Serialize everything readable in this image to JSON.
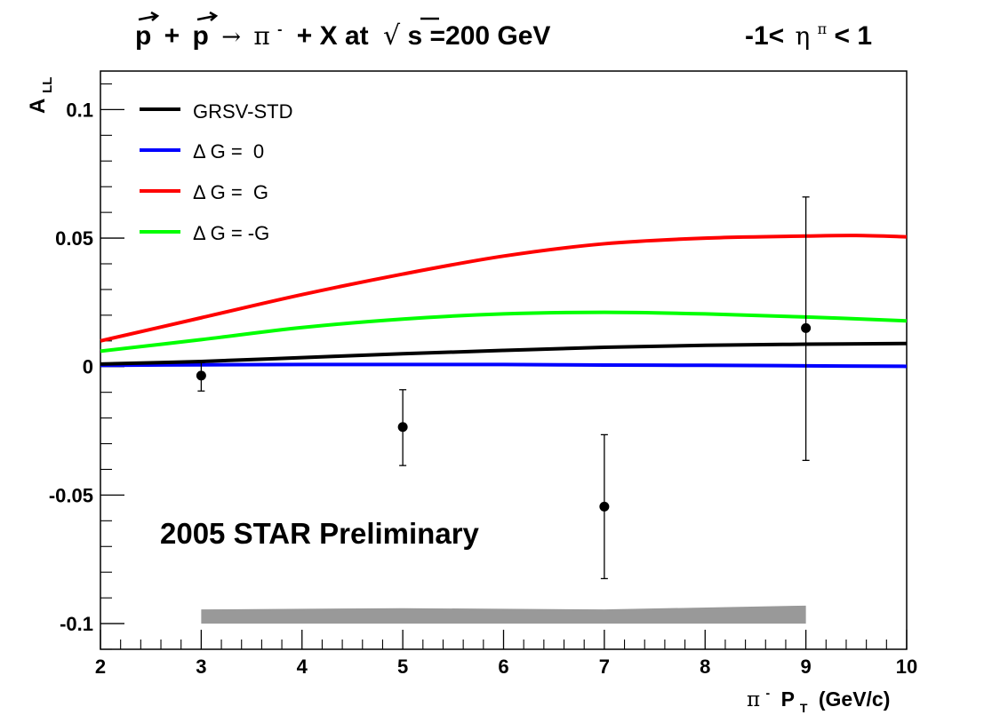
{
  "chart_data": {
    "type": "line",
    "title": {
      "left_a": "p",
      "left_plus": "+",
      "left_b": "p",
      "arrow": "→",
      "pi": "π",
      "pi_charge": "-",
      "rest_a": "+ X at",
      "sqrt_sign": "√",
      "sqrt_s": "s",
      "rest_b": "=200 GeV",
      "cut_prefix": "-1<",
      "cut_eta": "η",
      "cut_eta_sup": "π",
      "cut_suffix": "< 1"
    },
    "xlabel": {
      "pi": "π",
      "pi_charge": "-",
      "p": "P",
      "p_sub": "T",
      "unit": "(GeV/c)"
    },
    "ylabel": {
      "a": "A",
      "sub": "LL"
    },
    "xlim": [
      2,
      10
    ],
    "ylim": [
      -0.11,
      0.115
    ],
    "x_ticks": [
      2,
      3,
      4,
      5,
      6,
      7,
      8,
      9,
      10
    ],
    "x_tick_labels": [
      "2",
      "3",
      "4",
      "5",
      "6",
      "7",
      "8",
      "9",
      "10"
    ],
    "y_ticks": [
      -0.1,
      -0.05,
      0,
      0.05,
      0.1
    ],
    "y_tick_labels": [
      "-0.1",
      "-0.05",
      "0",
      "0.05",
      "0.1"
    ],
    "annotation": "2005 STAR Preliminary",
    "legend_position": "top-left",
    "series": [
      {
        "name": "GRSV-STD",
        "color": "#000000",
        "x": [
          2,
          3,
          4,
          5,
          6,
          7,
          8,
          9,
          10
        ],
        "y": [
          0.001,
          0.002,
          0.0035,
          0.005,
          0.0063,
          0.0075,
          0.0083,
          0.0087,
          0.009
        ]
      },
      {
        "name": "Δ G =  0",
        "color": "#0000ff",
        "x": [
          2,
          3,
          4,
          5,
          6,
          7,
          8,
          9,
          10
        ],
        "y": [
          0.0005,
          0.0007,
          0.0008,
          0.0008,
          0.0008,
          0.0006,
          0.0005,
          0.0003,
          0.0001
        ]
      },
      {
        "name": "Δ G =  G",
        "color": "#ff0000",
        "x": [
          2,
          3,
          4,
          5,
          6,
          7,
          8,
          9,
          9.5,
          10
        ],
        "y": [
          0.01,
          0.019,
          0.028,
          0.036,
          0.043,
          0.0478,
          0.05,
          0.0508,
          0.051,
          0.0505
        ]
      },
      {
        "name": "Δ G = -G",
        "color": "#00ff00",
        "x": [
          2,
          3,
          4,
          5,
          6,
          7,
          8,
          9,
          10
        ],
        "y": [
          0.006,
          0.0105,
          0.0152,
          0.0185,
          0.0205,
          0.0211,
          0.0205,
          0.0193,
          0.0178
        ]
      }
    ],
    "data_points": [
      {
        "x": 3,
        "y": -0.0035,
        "err_low": -0.0095,
        "err_high": 0.0015
      },
      {
        "x": 5,
        "y": -0.0235,
        "err_low": -0.0385,
        "err_high": -0.009
      },
      {
        "x": 7,
        "y": -0.0545,
        "err_low": -0.0825,
        "err_high": -0.0265
      },
      {
        "x": 9,
        "y": 0.015,
        "err_low": -0.0365,
        "err_high": 0.066
      }
    ],
    "systematic_band": {
      "color": "#999999",
      "x": [
        3,
        5,
        7,
        9
      ],
      "y_low": [
        -0.1,
        -0.1,
        -0.1,
        -0.1
      ],
      "y_high": [
        -0.0945,
        -0.094,
        -0.0945,
        -0.093
      ]
    }
  }
}
